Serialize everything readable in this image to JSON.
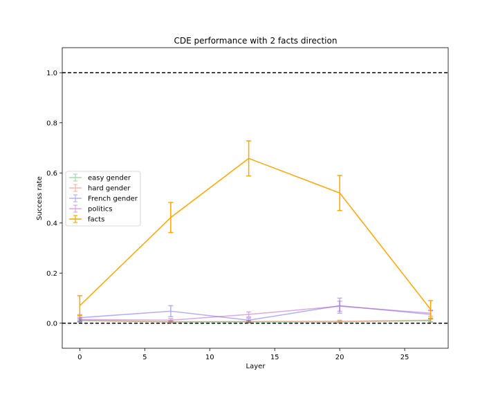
{
  "chart_data": {
    "type": "line",
    "title": "CDE performance with 2 facts direction",
    "xlabel": "Layer",
    "ylabel": "Success rate",
    "xlim": [
      -1.35,
      28.35
    ],
    "ylim": [
      -0.1,
      1.1
    ],
    "xticks": [
      0,
      5,
      10,
      15,
      20,
      25
    ],
    "yticks": [
      0.0,
      0.2,
      0.4,
      0.6,
      0.8,
      1.0
    ],
    "x": [
      0,
      7,
      13,
      20,
      27
    ],
    "reference_lines": [
      1.0,
      0.0
    ],
    "legend_position": "center-left",
    "grid": false,
    "series": [
      {
        "name": "easy gender",
        "color": "#2ca02c",
        "alpha": 0.4,
        "values": [
          0.01,
          0.005,
          0.005,
          0.005,
          0.01
        ],
        "errors": [
          0.006,
          0.004,
          0.004,
          0.004,
          0.006
        ]
      },
      {
        "name": "hard gender",
        "color": "#e8533a",
        "alpha": 0.4,
        "values": [
          0.012,
          0.006,
          0.007,
          0.008,
          0.012
        ],
        "errors": [
          0.006,
          0.004,
          0.004,
          0.004,
          0.006
        ]
      },
      {
        "name": "French gender",
        "color": "#1f1fe0",
        "alpha": 0.35,
        "values": [
          0.022,
          0.048,
          0.012,
          0.07,
          0.035
        ],
        "errors": [
          0.012,
          0.022,
          0.008,
          0.03,
          0.015
        ]
      },
      {
        "name": "politics",
        "color": "#b040c0",
        "alpha": 0.45,
        "values": [
          0.015,
          0.012,
          0.035,
          0.068,
          0.04
        ],
        "errors": [
          0.008,
          0.006,
          0.01,
          0.02,
          0.012
        ]
      },
      {
        "name": "facts",
        "color": "#ffa500",
        "alpha": 1.0,
        "values": [
          0.07,
          0.422,
          0.658,
          0.52,
          0.055
        ],
        "errors": [
          0.04,
          0.06,
          0.07,
          0.07,
          0.035
        ]
      }
    ]
  }
}
